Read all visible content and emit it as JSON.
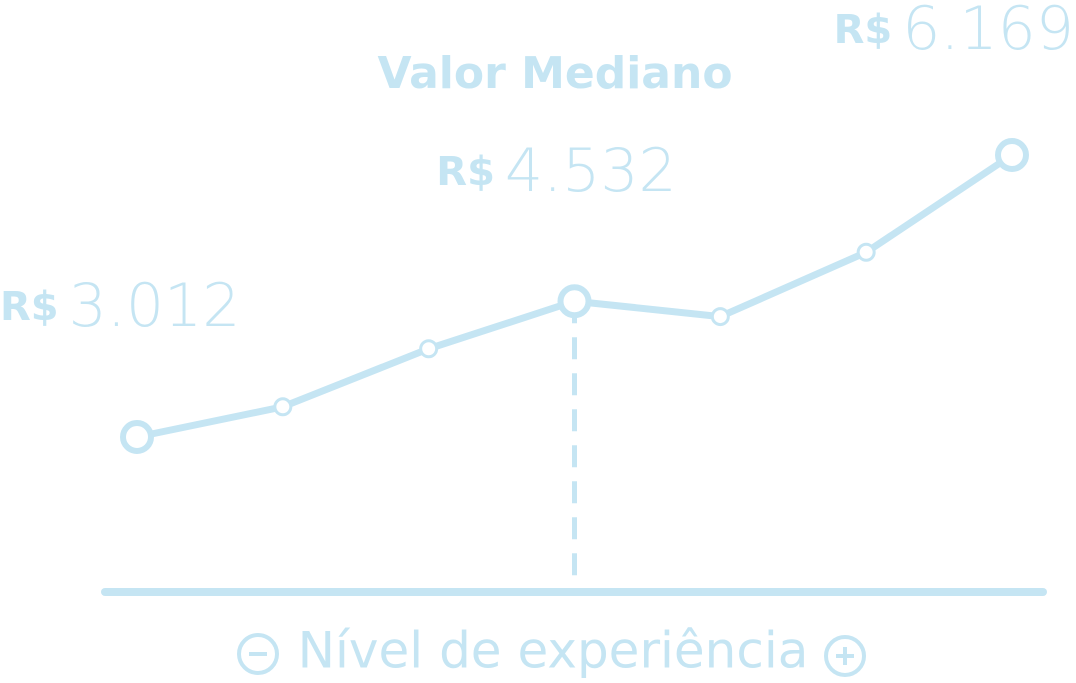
{
  "chart_data": {
    "type": "line",
    "title": "Valor Mediano",
    "x_label": "Nível de experiência",
    "currency": "R$",
    "categories": [
      null,
      null,
      null,
      null,
      null,
      null,
      null
    ],
    "values": [
      3012,
      3350,
      4000,
      4532,
      4360,
      5080,
      6169
    ],
    "value_labels": [
      "3.012",
      null,
      null,
      "4.532",
      null,
      null,
      "6.169"
    ],
    "median_index": 3,
    "color": "#c5e5f3"
  }
}
